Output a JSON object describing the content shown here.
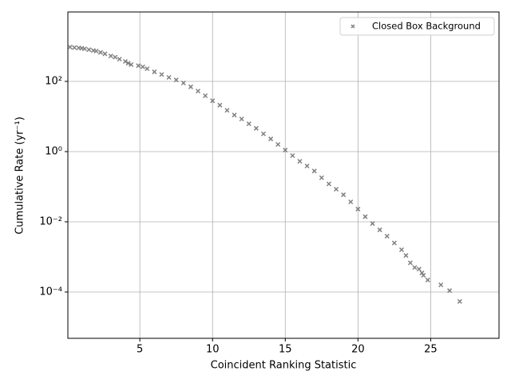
{
  "chart_data": {
    "type": "scatter",
    "xlabel": "Coincident Ranking Statistic",
    "ylabel": "Cumulative Rate (yr⁻¹)",
    "x": [
      0.2,
      0.5,
      0.8,
      1.0,
      1.2,
      1.5,
      1.8,
      2.0,
      2.3,
      2.6,
      3.0,
      3.3,
      3.6,
      4.0,
      4.2,
      4.4,
      4.9,
      5.2,
      5.5,
      6,
      6.5,
      7,
      7.5,
      8,
      8.5,
      9,
      9.5,
      10,
      10.5,
      11,
      11.5,
      12,
      12.5,
      13,
      13.5,
      14,
      14.5,
      15,
      15.5,
      16,
      16.5,
      17,
      17.5,
      18,
      18.5,
      19,
      19.5,
      20,
      20.5,
      21,
      21.5,
      22,
      22.5,
      23,
      23.3,
      23.6,
      23.9,
      24.2,
      24.4,
      24.5,
      24.8,
      25.7,
      26.3,
      27.0
    ],
    "series": [
      {
        "name": "Closed Box Background",
        "color": "#808080",
        "values": [
          950,
          920,
          900,
          880,
          850,
          800,
          760,
          730,
          670,
          610,
          530,
          490,
          430,
          370,
          330,
          300,
          280,
          260,
          230,
          187,
          157,
          130,
          110,
          90,
          70,
          53,
          39,
          28,
          21,
          15,
          11,
          8.5,
          6.2,
          4.6,
          3.2,
          2.3,
          1.6,
          1.1,
          0.77,
          0.53,
          0.39,
          0.28,
          0.18,
          0.12,
          0.085,
          0.059,
          0.037,
          0.023,
          0.014,
          0.0089,
          0.0059,
          0.0039,
          0.0025,
          0.0016,
          0.0011,
          0.00068,
          0.0005,
          0.00045,
          0.00035,
          0.0003,
          0.00022,
          0.00016,
          0.00011,
          5.4e-05
        ]
      }
    ],
    "xlim": [
      0.05,
      29.7
    ],
    "xticks": [
      5,
      10,
      15,
      20,
      25
    ],
    "ylim": [
      4.8e-06,
      9500
    ],
    "yticks": [
      {
        "value": 100,
        "label": "10²"
      },
      {
        "value": 1,
        "label": "10⁰"
      },
      {
        "value": 0.01,
        "label": "10⁻²"
      },
      {
        "value": 0.0001,
        "label": "10⁻⁴"
      }
    ],
    "ylog": true,
    "grid": true,
    "legend": "upper right"
  }
}
